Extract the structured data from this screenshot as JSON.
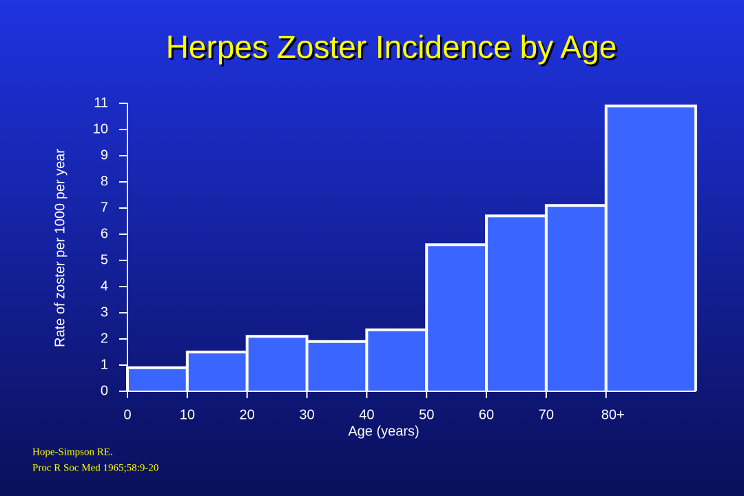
{
  "chart_data": {
    "type": "histogram",
    "title": "Herpes Zoster Incidence by Age",
    "xlabel": "Age (years)",
    "ylabel": "Rate of zoster per 1000 per year",
    "bins": [
      0,
      10,
      20,
      30,
      40,
      50,
      60,
      70,
      80,
      95
    ],
    "values": [
      0.9,
      1.5,
      2.1,
      1.9,
      2.35,
      5.6,
      6.7,
      7.1,
      10.9
    ],
    "color": "#3a66ff",
    "xlim": [
      0,
      95
    ],
    "xticks": [
      0,
      10,
      20,
      30,
      40,
      50,
      60,
      70,
      {
        "value": 80,
        "label": "80+"
      }
    ],
    "ylim": [
      0,
      11
    ],
    "yticks": [
      0,
      1,
      2,
      3,
      4,
      5,
      6,
      7,
      8,
      9,
      10,
      11
    ]
  },
  "citation": [
    "Hope-Simpson RE.",
    "Proc R Soc Med 1965;58:9-20"
  ]
}
